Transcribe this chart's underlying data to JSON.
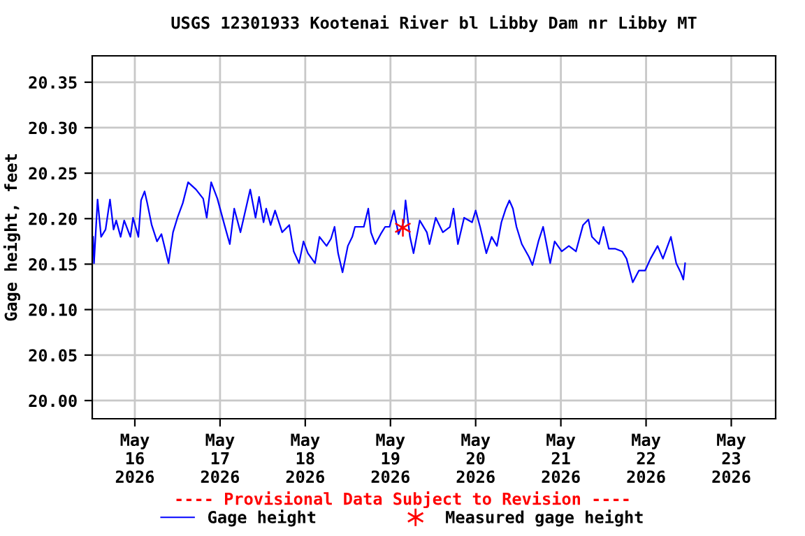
{
  "chart_data": {
    "type": "line",
    "title": "USGS 12301933 Kootenai River bl Libby Dam nr Libby MT",
    "ylabel": "Gage height, feet",
    "annotations": [
      "---- Provisional Data Subject to Revision ----"
    ],
    "xlim": [
      "2026-05-15T12:00",
      "2026-05-23T12:30"
    ],
    "xticks": [
      {
        "value": "2026-05-16",
        "label": "May\n16\n2026"
      },
      {
        "value": "2026-05-17",
        "label": "May\n17\n2026"
      },
      {
        "value": "2026-05-18",
        "label": "May\n18\n2026"
      },
      {
        "value": "2026-05-19",
        "label": "May\n19\n2026"
      },
      {
        "value": "2026-05-20",
        "label": "May\n20\n2026"
      },
      {
        "value": "2026-05-21",
        "label": "May\n21\n2026"
      },
      {
        "value": "2026-05-22",
        "label": "May\n22\n2026"
      },
      {
        "value": "2026-05-23",
        "label": "May\n23\n2026"
      }
    ],
    "ylim": [
      19.98,
      20.379
    ],
    "yticks": [
      {
        "value": 20.0,
        "label": "20.00"
      },
      {
        "value": 20.05,
        "label": "20.05"
      },
      {
        "value": 20.1,
        "label": "20.10"
      },
      {
        "value": 20.15,
        "label": "20.15"
      },
      {
        "value": 20.2,
        "label": "20.20"
      },
      {
        "value": 20.25,
        "label": "20.25"
      },
      {
        "value": 20.3,
        "label": "20.30"
      },
      {
        "value": 20.35,
        "label": "20.35"
      }
    ],
    "grid": true,
    "legend": "bottom",
    "series": [
      {
        "name": "Gage height",
        "color": "#0000ff",
        "line_style": "solid",
        "marker": "none",
        "x": [
          "2026-05-15T12:15",
          "2026-05-15T12:30",
          "2026-05-15T13:30",
          "2026-05-15T14:30",
          "2026-05-15T15:45",
          "2026-05-15T17:00",
          "2026-05-15T18:00",
          "2026-05-15T18:45",
          "2026-05-15T20:00",
          "2026-05-15T21:00",
          "2026-05-15T22:45",
          "2026-05-15T23:30",
          "2026-05-16T01:00",
          "2026-05-16T01:45",
          "2026-05-16T02:45",
          "2026-05-16T03:30",
          "2026-05-16T04:45",
          "2026-05-16T06:15",
          "2026-05-16T07:30",
          "2026-05-16T08:30",
          "2026-05-16T09:30",
          "2026-05-16T10:45",
          "2026-05-16T12:00",
          "2026-05-16T13:30",
          "2026-05-16T15:00",
          "2026-05-16T17:15",
          "2026-05-16T19:15",
          "2026-05-16T20:15",
          "2026-05-16T21:30",
          "2026-05-16T23:15",
          "2026-05-17T01:15",
          "2026-05-17T02:45",
          "2026-05-17T04:00",
          "2026-05-17T05:45",
          "2026-05-17T08:30",
          "2026-05-17T10:00",
          "2026-05-17T11:00",
          "2026-05-17T12:15",
          "2026-05-17T13:00",
          "2026-05-17T14:15",
          "2026-05-17T15:30",
          "2026-05-17T17:30",
          "2026-05-17T19:30",
          "2026-05-17T20:45",
          "2026-05-17T22:15",
          "2026-05-17T23:30",
          "2026-05-18T00:45",
          "2026-05-18T02:45",
          "2026-05-18T04:00",
          "2026-05-18T06:00",
          "2026-05-18T07:15",
          "2026-05-18T08:15",
          "2026-05-18T09:15",
          "2026-05-18T10:30",
          "2026-05-18T12:00",
          "2026-05-18T13:15",
          "2026-05-18T14:00",
          "2026-05-18T15:45",
          "2026-05-18T16:30",
          "2026-05-18T17:45",
          "2026-05-18T18:30",
          "2026-05-18T19:45",
          "2026-05-18T21:15",
          "2026-05-18T22:30",
          "2026-05-18T23:45",
          "2026-05-19T01:00",
          "2026-05-19T02:15",
          "2026-05-19T03:45",
          "2026-05-19T04:15",
          "2026-05-19T05:30",
          "2026-05-19T06:30",
          "2026-05-19T08:15",
          "2026-05-19T10:15",
          "2026-05-19T11:00",
          "2026-05-19T12:45",
          "2026-05-19T14:45",
          "2026-05-19T16:45",
          "2026-05-19T17:45",
          "2026-05-19T19:00",
          "2026-05-19T20:45",
          "2026-05-19T23:00",
          "2026-05-20T00:00",
          "2026-05-20T01:15",
          "2026-05-20T03:00",
          "2026-05-20T04:30",
          "2026-05-20T06:00",
          "2026-05-20T07:15",
          "2026-05-20T08:30",
          "2026-05-20T09:30",
          "2026-05-20T10:30",
          "2026-05-20T11:30",
          "2026-05-20T13:00",
          "2026-05-20T15:00",
          "2026-05-20T16:00",
          "2026-05-20T17:45",
          "2026-05-20T19:00",
          "2026-05-20T21:00",
          "2026-05-20T22:15",
          "2026-05-21T00:15",
          "2026-05-21T02:15",
          "2026-05-21T04:15",
          "2026-05-21T06:15",
          "2026-05-21T07:45",
          "2026-05-21T08:45",
          "2026-05-21T10:45",
          "2026-05-21T12:00",
          "2026-05-21T13:30",
          "2026-05-21T15:15",
          "2026-05-21T17:15",
          "2026-05-21T18:30",
          "2026-05-21T20:15",
          "2026-05-21T22:00",
          "2026-05-21T23:45",
          "2026-05-22T01:15",
          "2026-05-22T03:15",
          "2026-05-22T04:45",
          "2026-05-22T07:00",
          "2026-05-22T08:30",
          "2026-05-22T09:45",
          "2026-05-22T10:30",
          "2026-05-22T11:00"
        ],
        "values": [
          20.18,
          20.151,
          20.221,
          20.18,
          20.188,
          20.221,
          20.188,
          20.198,
          20.18,
          20.198,
          20.18,
          20.201,
          20.18,
          20.22,
          20.23,
          20.217,
          20.193,
          20.175,
          20.183,
          20.167,
          20.151,
          20.185,
          20.201,
          20.217,
          20.24,
          20.232,
          20.222,
          20.201,
          20.24,
          20.222,
          20.193,
          20.172,
          20.211,
          20.185,
          20.232,
          20.201,
          20.224,
          20.196,
          20.211,
          20.193,
          20.209,
          20.185,
          20.193,
          20.164,
          20.151,
          20.175,
          20.162,
          20.151,
          20.18,
          20.17,
          20.178,
          20.191,
          20.162,
          20.141,
          20.17,
          20.18,
          20.191,
          20.191,
          20.191,
          20.211,
          20.185,
          20.172,
          20.183,
          20.191,
          20.191,
          20.209,
          20.183,
          20.196,
          20.22,
          20.18,
          20.162,
          20.198,
          20.185,
          20.172,
          20.201,
          20.185,
          20.191,
          20.211,
          20.172,
          20.201,
          20.196,
          20.209,
          20.191,
          20.162,
          20.18,
          20.17,
          20.196,
          20.211,
          20.22,
          20.211,
          20.191,
          20.172,
          20.158,
          20.149,
          20.176,
          20.191,
          20.151,
          20.175,
          20.164,
          20.17,
          20.164,
          20.193,
          20.199,
          20.18,
          20.172,
          20.191,
          20.167,
          20.167,
          20.164,
          20.156,
          20.13,
          20.143,
          20.143,
          20.156,
          20.17,
          20.156,
          20.18,
          20.151,
          20.141,
          20.133,
          20.151
        ]
      },
      {
        "name": "Measured gage height",
        "type": "scatter",
        "color": "#ff0000",
        "marker": "cross",
        "x": [
          "2026-05-19T03:30"
        ],
        "values": [
          20.19
        ]
      }
    ]
  }
}
